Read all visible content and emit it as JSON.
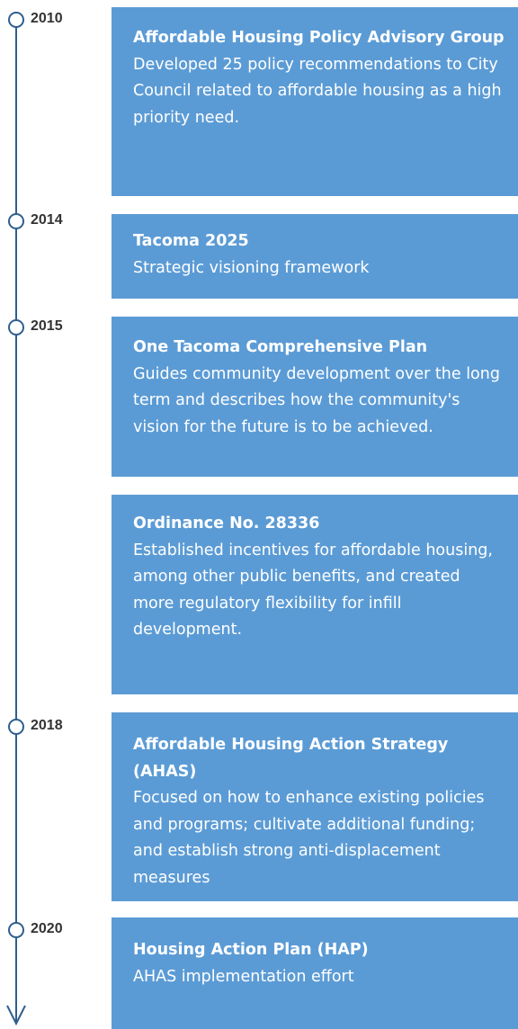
{
  "timeline": [
    {
      "year": "2010",
      "items": [
        {
          "title": "Affordable Housing Policy Advisory Group",
          "description": "Developed 25 policy recommendations to City Council related to affordable housing as a high priority need."
        }
      ]
    },
    {
      "year": "2014",
      "items": [
        {
          "title": "Tacoma 2025",
          "description": "Strategic visioning framework"
        }
      ]
    },
    {
      "year": "2015",
      "items": [
        {
          "title": "One Tacoma Comprehensive Plan",
          "description": "Guides community development over the long term and describes how the community's vision for the future is to be achieved."
        },
        {
          "title": "Ordinance No. 28336",
          "description": "Established incentives for affordable housing, among other public benefits, and created more regulatory flexibility for infill development."
        }
      ]
    },
    {
      "year": "2018",
      "items": [
        {
          "title": "Affordable Housing Action Strategy (AHAS)",
          "description": "Focused on how to enhance existing policies and programs; cultivate additional funding; and establish strong anti-displacement measures"
        }
      ]
    },
    {
      "year": "2020",
      "items": [
        {
          "title": "Housing Action Plan (HAP)",
          "description": "AHAS implementation effort"
        }
      ]
    }
  ]
}
